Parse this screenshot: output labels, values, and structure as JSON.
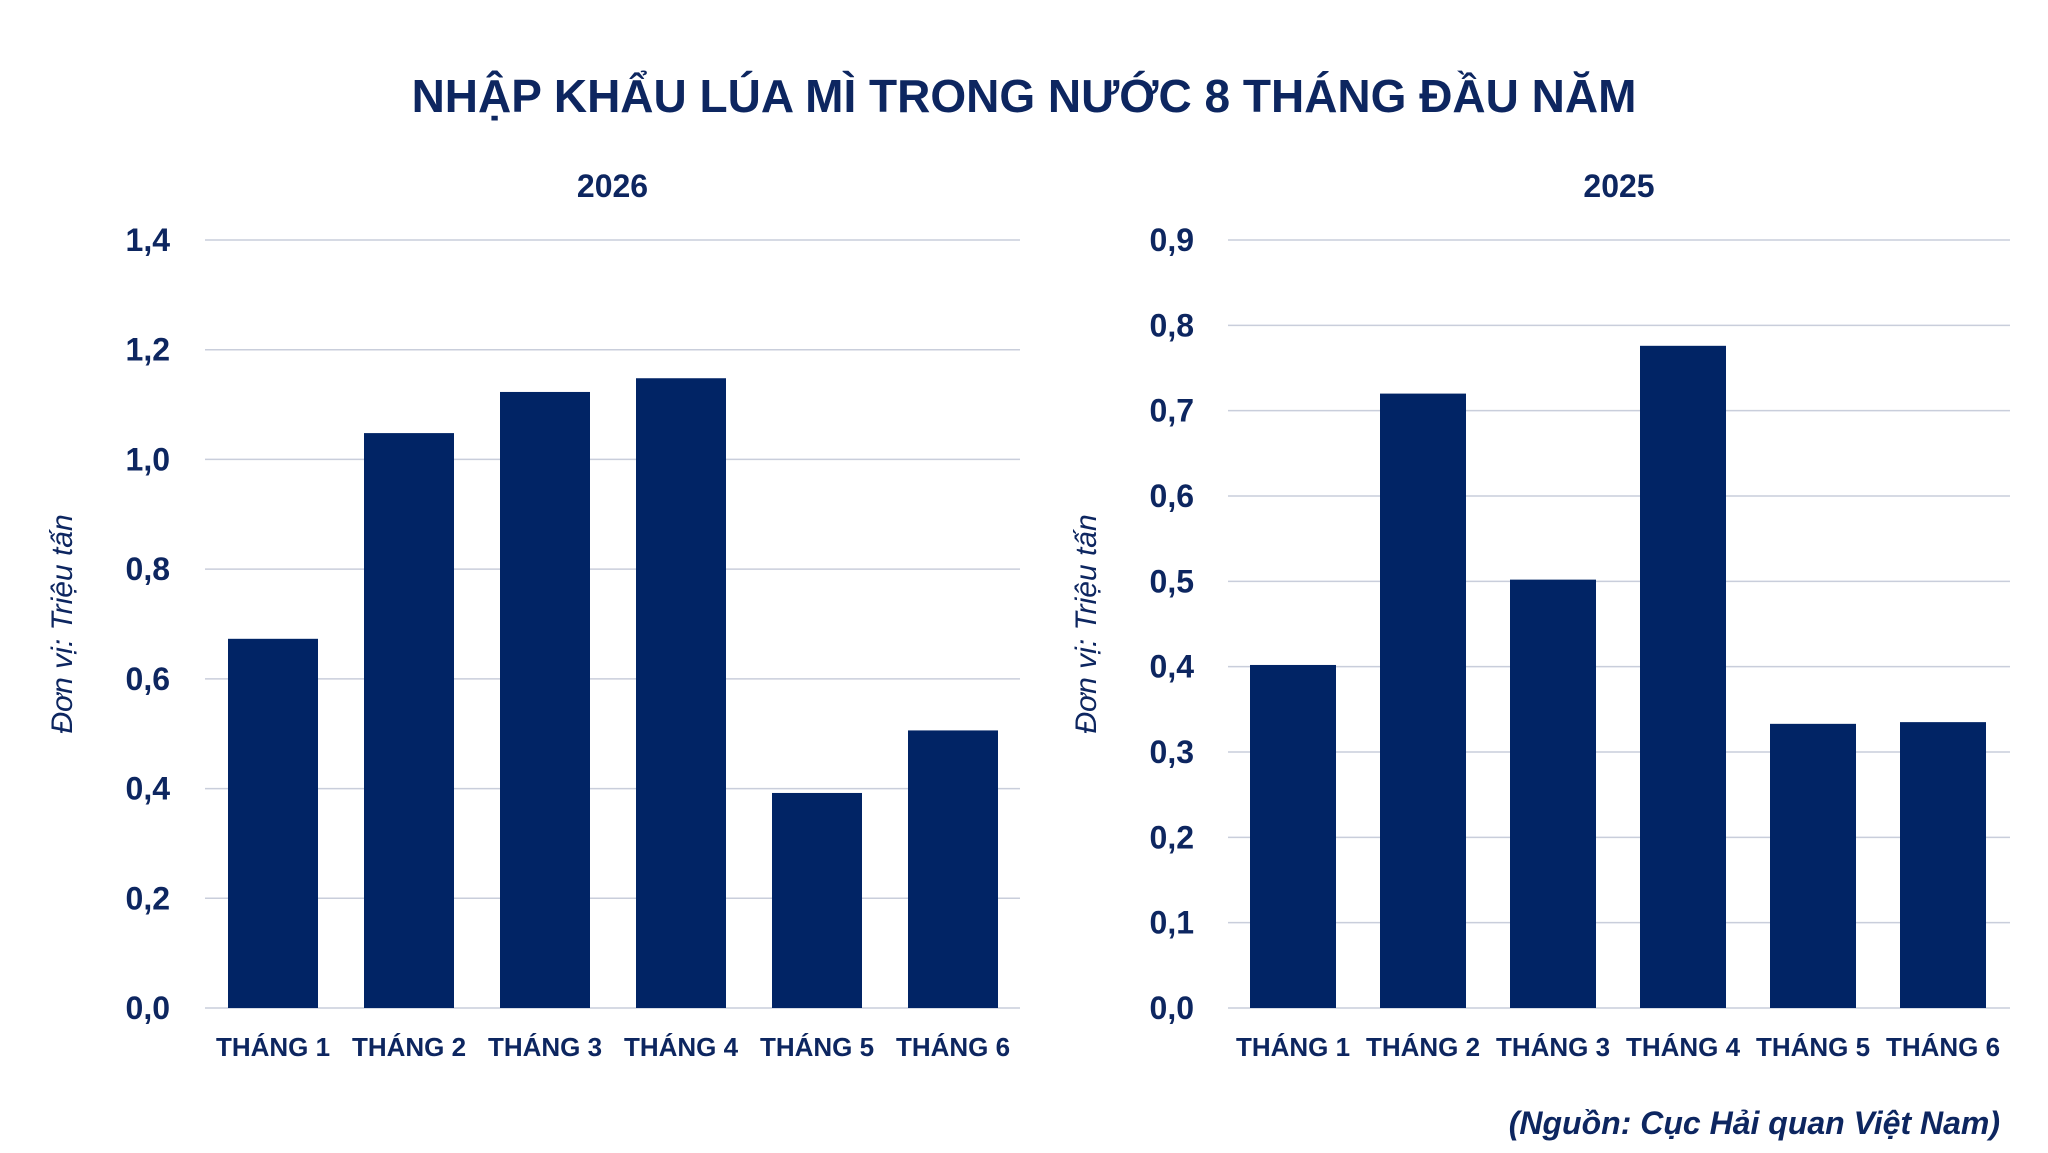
{
  "title": "NHẬP KHẨU LÚA MÌ TRONG NƯỚC 8 THÁNG ĐẦU NĂM",
  "source": "(Nguồn: Cục Hải quan Việt Nam)",
  "colors": {
    "bar": "#012465",
    "text": "#0d2660",
    "grid": "#c9cedb"
  },
  "chart_data": [
    {
      "type": "bar",
      "title": "2026",
      "ylabel": "Đơn vị: Triệu tấn",
      "categories": [
        "THÁNG 1",
        "THÁNG 2",
        "THÁNG 3",
        "THÁNG 4",
        "THÁNG 5",
        "THÁNG 6"
      ],
      "values": [
        0.673,
        1.048,
        1.123,
        1.148,
        0.392,
        0.506
      ],
      "ylim": [
        0,
        1.4
      ],
      "yticks": [
        "0,0",
        "0,2",
        "0,4",
        "0,6",
        "0,8",
        "1,0",
        "1,2",
        "1,4"
      ],
      "grid": true
    },
    {
      "type": "bar",
      "title": "2025",
      "ylabel": "Đơn vị: Triệu tấn",
      "categories": [
        "THÁNG 1",
        "THÁNG 2",
        "THÁNG 3",
        "THÁNG 4",
        "THÁNG 5",
        "THÁNG 6"
      ],
      "values": [
        0.402,
        0.72,
        0.502,
        0.776,
        0.333,
        0.335
      ],
      "ylim": [
        0,
        0.9
      ],
      "yticks": [
        "0,0",
        "0,1",
        "0,2",
        "0,3",
        "0,4",
        "0,5",
        "0,6",
        "0,7",
        "0,8",
        "0,9"
      ],
      "grid": true
    }
  ]
}
